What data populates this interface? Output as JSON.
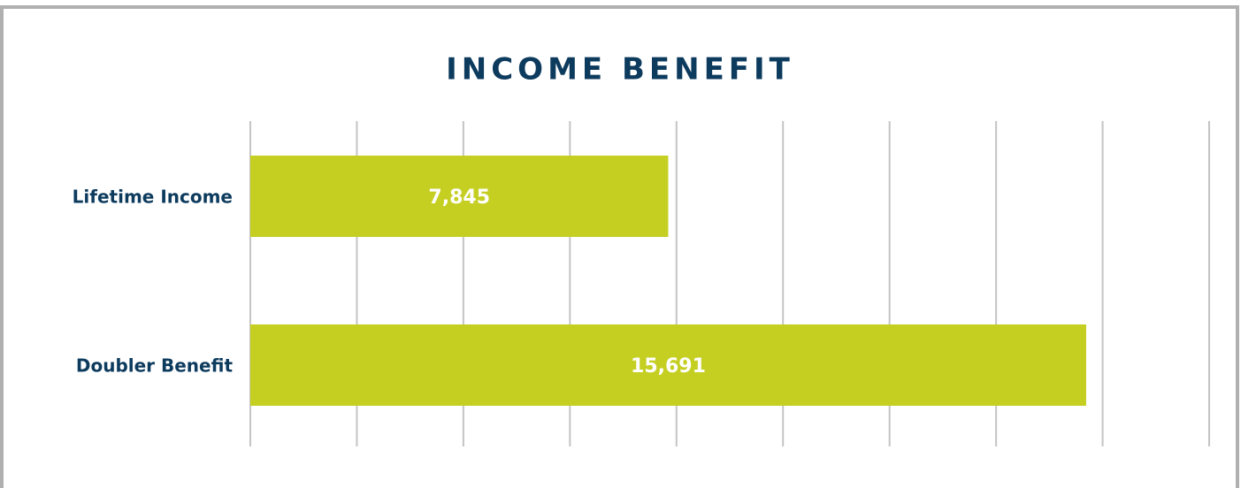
{
  "chart_data": {
    "type": "bar",
    "orientation": "horizontal",
    "title": "INCOME BENEFIT",
    "categories": [
      "Lifetime Income",
      "Doubler Benefit"
    ],
    "values": [
      7845,
      15691
    ],
    "value_labels": [
      "7,845",
      "15,691"
    ],
    "color": "#c5cf22",
    "xlim": [
      0,
      18000
    ],
    "xticks": [
      0,
      2000,
      4000,
      6000,
      8000,
      10000,
      12000,
      14000,
      16000,
      18000
    ],
    "grid": true
  }
}
